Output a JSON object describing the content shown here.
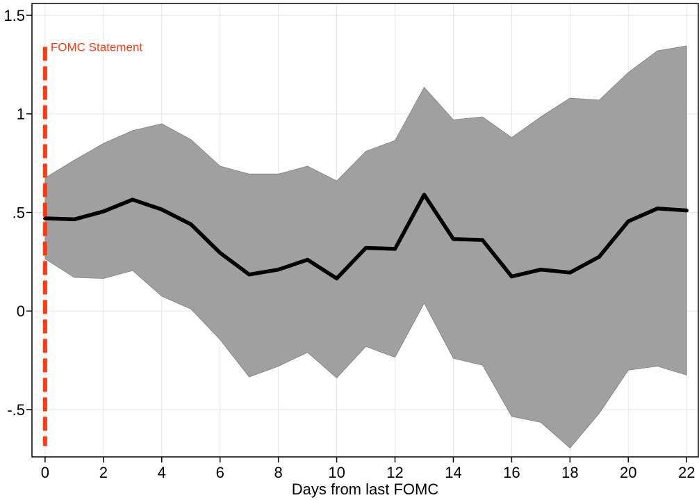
{
  "chart_data": {
    "type": "line",
    "title": "",
    "xlabel": "Days from last FOMC",
    "ylabel": "",
    "xlim": [
      -0.45,
      22.4
    ],
    "ylim": [
      -0.74,
      1.56
    ],
    "x_ticks": [
      0,
      2,
      4,
      6,
      8,
      10,
      12,
      14,
      16,
      18,
      20,
      22
    ],
    "x_tick_labels": [
      "0",
      "2",
      "4",
      "6",
      "8",
      "10",
      "12",
      "14",
      "16",
      "18",
      "20",
      "22"
    ],
    "y_ticks": [
      -0.5,
      0,
      0.5,
      1,
      1.5
    ],
    "y_tick_labels": [
      "-.5",
      "0",
      ".5",
      "1",
      "1.5"
    ],
    "grid": true,
    "x": [
      0,
      1,
      2,
      3,
      4,
      5,
      6,
      7,
      8,
      9,
      10,
      11,
      12,
      13,
      14,
      15,
      16,
      17,
      18,
      19,
      20,
      21,
      22
    ],
    "series": [
      {
        "values": [
          0.47,
          0.465,
          0.505,
          0.565,
          0.515,
          0.44,
          0.295,
          0.185,
          0.21,
          0.26,
          0.165,
          0.32,
          0.315,
          0.59,
          0.365,
          0.36,
          0.175,
          0.21,
          0.195,
          0.275,
          0.455,
          0.52,
          0.51
        ],
        "color": "#000000"
      }
    ],
    "band": {
      "upper": [
        0.675,
        0.765,
        0.85,
        0.915,
        0.95,
        0.87,
        0.735,
        0.695,
        0.695,
        0.735,
        0.66,
        0.81,
        0.865,
        1.135,
        0.97,
        0.985,
        0.88,
        0.985,
        1.08,
        1.07,
        1.21,
        1.32,
        1.345
      ],
      "lower": [
        0.265,
        0.17,
        0.165,
        0.205,
        0.075,
        0.01,
        -0.145,
        -0.335,
        -0.28,
        -0.21,
        -0.34,
        -0.18,
        -0.235,
        0.04,
        -0.24,
        -0.275,
        -0.535,
        -0.565,
        -0.695,
        -0.52,
        -0.3,
        -0.28,
        -0.325
      ],
      "color": "#a0a0a0"
    },
    "annotations": [
      {
        "type": "vertical-line",
        "x": 0,
        "y_from": -0.685,
        "y_to": 1.34,
        "color": "#ff3a10",
        "label": "FOMC Statement"
      }
    ]
  }
}
